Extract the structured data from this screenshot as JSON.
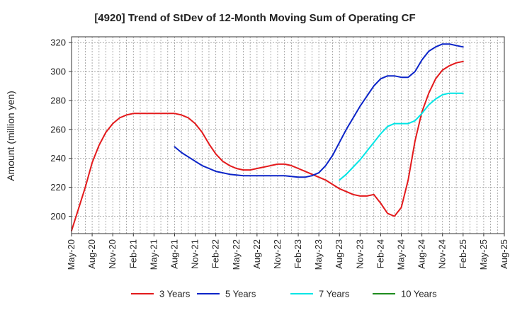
{
  "chart_data": {
    "type": "line",
    "title": "[4920]  Trend of StDev of 12-Month Moving Sum of Operating CF",
    "xlabel": "",
    "ylabel": "Amount (million yen)",
    "ylim": [
      188,
      324
    ],
    "y_ticks": [
      200,
      220,
      240,
      260,
      280,
      300,
      320
    ],
    "x_tick_labels": [
      "May-20",
      "Aug-20",
      "Nov-20",
      "Feb-21",
      "May-21",
      "Aug-21",
      "Nov-21",
      "Feb-22",
      "May-22",
      "Aug-22",
      "Nov-22",
      "Feb-23",
      "May-23",
      "Aug-23",
      "Nov-23",
      "Feb-24",
      "May-24",
      "Aug-24",
      "Nov-24",
      "Feb-25",
      "May-25",
      "Aug-25"
    ],
    "x_start": "2020-05",
    "x_end": "2025-08",
    "grid": true,
    "legend_position": "bottom",
    "series": [
      {
        "name": "3 Years",
        "color": "#e31a1c",
        "x": [
          "2020-05",
          "2020-06",
          "2020-07",
          "2020-08",
          "2020-09",
          "2020-10",
          "2020-11",
          "2020-12",
          "2021-01",
          "2021-02",
          "2021-03",
          "2021-04",
          "2021-05",
          "2021-06",
          "2021-07",
          "2021-08",
          "2021-09",
          "2021-10",
          "2021-11",
          "2021-12",
          "2022-01",
          "2022-02",
          "2022-03",
          "2022-04",
          "2022-05",
          "2022-06",
          "2022-07",
          "2022-08",
          "2022-09",
          "2022-10",
          "2022-11",
          "2022-12",
          "2023-01",
          "2023-02",
          "2023-03",
          "2023-04",
          "2023-05",
          "2023-06",
          "2023-07",
          "2023-08",
          "2023-09",
          "2023-10",
          "2023-11",
          "2023-12",
          "2024-01",
          "2024-02",
          "2024-03",
          "2024-04",
          "2024-05",
          "2024-06",
          "2024-07",
          "2024-08",
          "2024-09",
          "2024-10",
          "2024-11",
          "2024-12",
          "2025-01",
          "2025-02"
        ],
        "values": [
          190,
          205,
          220,
          237,
          249,
          258,
          264,
          268,
          270,
          271,
          271,
          271,
          271,
          271,
          271,
          271,
          270,
          268,
          264,
          258,
          250,
          243,
          238,
          235,
          233,
          232,
          232,
          233,
          234,
          235,
          236,
          236,
          235,
          233,
          231,
          229,
          227,
          225,
          222,
          219,
          217,
          215,
          214,
          214,
          215,
          209,
          202,
          200,
          206,
          225,
          252,
          272,
          285,
          295,
          301,
          304,
          306,
          307
        ]
      },
      {
        "name": "5 Years",
        "color": "#0b24c8",
        "x": [
          "2021-08",
          "2021-09",
          "2021-10",
          "2021-11",
          "2021-12",
          "2022-01",
          "2022-02",
          "2022-03",
          "2022-04",
          "2022-05",
          "2022-06",
          "2022-07",
          "2022-08",
          "2022-09",
          "2022-10",
          "2022-11",
          "2022-12",
          "2023-01",
          "2023-02",
          "2023-03",
          "2023-04",
          "2023-05",
          "2023-06",
          "2023-07",
          "2023-08",
          "2023-09",
          "2023-10",
          "2023-11",
          "2023-12",
          "2024-01",
          "2024-02",
          "2024-03",
          "2024-04",
          "2024-05",
          "2024-06",
          "2024-07",
          "2024-08",
          "2024-09",
          "2024-10",
          "2024-11",
          "2024-12",
          "2025-01",
          "2025-02"
        ],
        "values": [
          248,
          244,
          241,
          238,
          235,
          233,
          231,
          230,
          229,
          228.5,
          228,
          228,
          228,
          228,
          228,
          228,
          228,
          227.5,
          227,
          227,
          228,
          230,
          235,
          242,
          251,
          260,
          268,
          276,
          283,
          290,
          295,
          297,
          297,
          296,
          296,
          300,
          308,
          314,
          317,
          319,
          319,
          318,
          317
        ]
      },
      {
        "name": "7 Years",
        "color": "#00e5e5",
        "x": [
          "2023-08",
          "2023-09",
          "2023-10",
          "2023-11",
          "2023-12",
          "2024-01",
          "2024-02",
          "2024-03",
          "2024-04",
          "2024-05",
          "2024-06",
          "2024-07",
          "2024-08",
          "2024-09",
          "2024-10",
          "2024-11",
          "2024-12",
          "2025-01",
          "2025-02"
        ],
        "values": [
          225,
          229,
          234,
          239,
          245,
          251,
          257,
          262,
          264,
          264,
          264,
          266,
          271,
          277,
          281,
          284,
          285,
          285,
          285
        ]
      },
      {
        "name": "10 Years",
        "color": "#1e8c1e",
        "x": [],
        "values": []
      }
    ]
  }
}
